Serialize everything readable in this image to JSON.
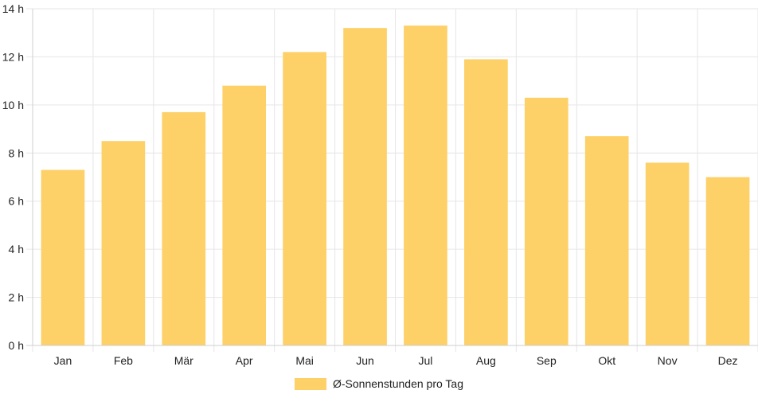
{
  "chart_data": {
    "type": "bar",
    "categories": [
      "Jan",
      "Feb",
      "Mär",
      "Apr",
      "Mai",
      "Jun",
      "Jul",
      "Aug",
      "Sep",
      "Okt",
      "Nov",
      "Dez"
    ],
    "series": [
      {
        "name": "Ø-Sonnenstunden pro Tag",
        "values": [
          7.3,
          8.5,
          9.7,
          10.8,
          12.2,
          13.2,
          13.3,
          11.9,
          10.3,
          8.7,
          7.6,
          7.0
        ],
        "color": "#fdd068"
      }
    ],
    "y_ticks": [
      "0 h",
      "2 h",
      "4 h",
      "6 h",
      "8 h",
      "10 h",
      "12 h",
      "14 h"
    ],
    "ylim": [
      0,
      14
    ],
    "grid": true,
    "legend": "bottom"
  }
}
